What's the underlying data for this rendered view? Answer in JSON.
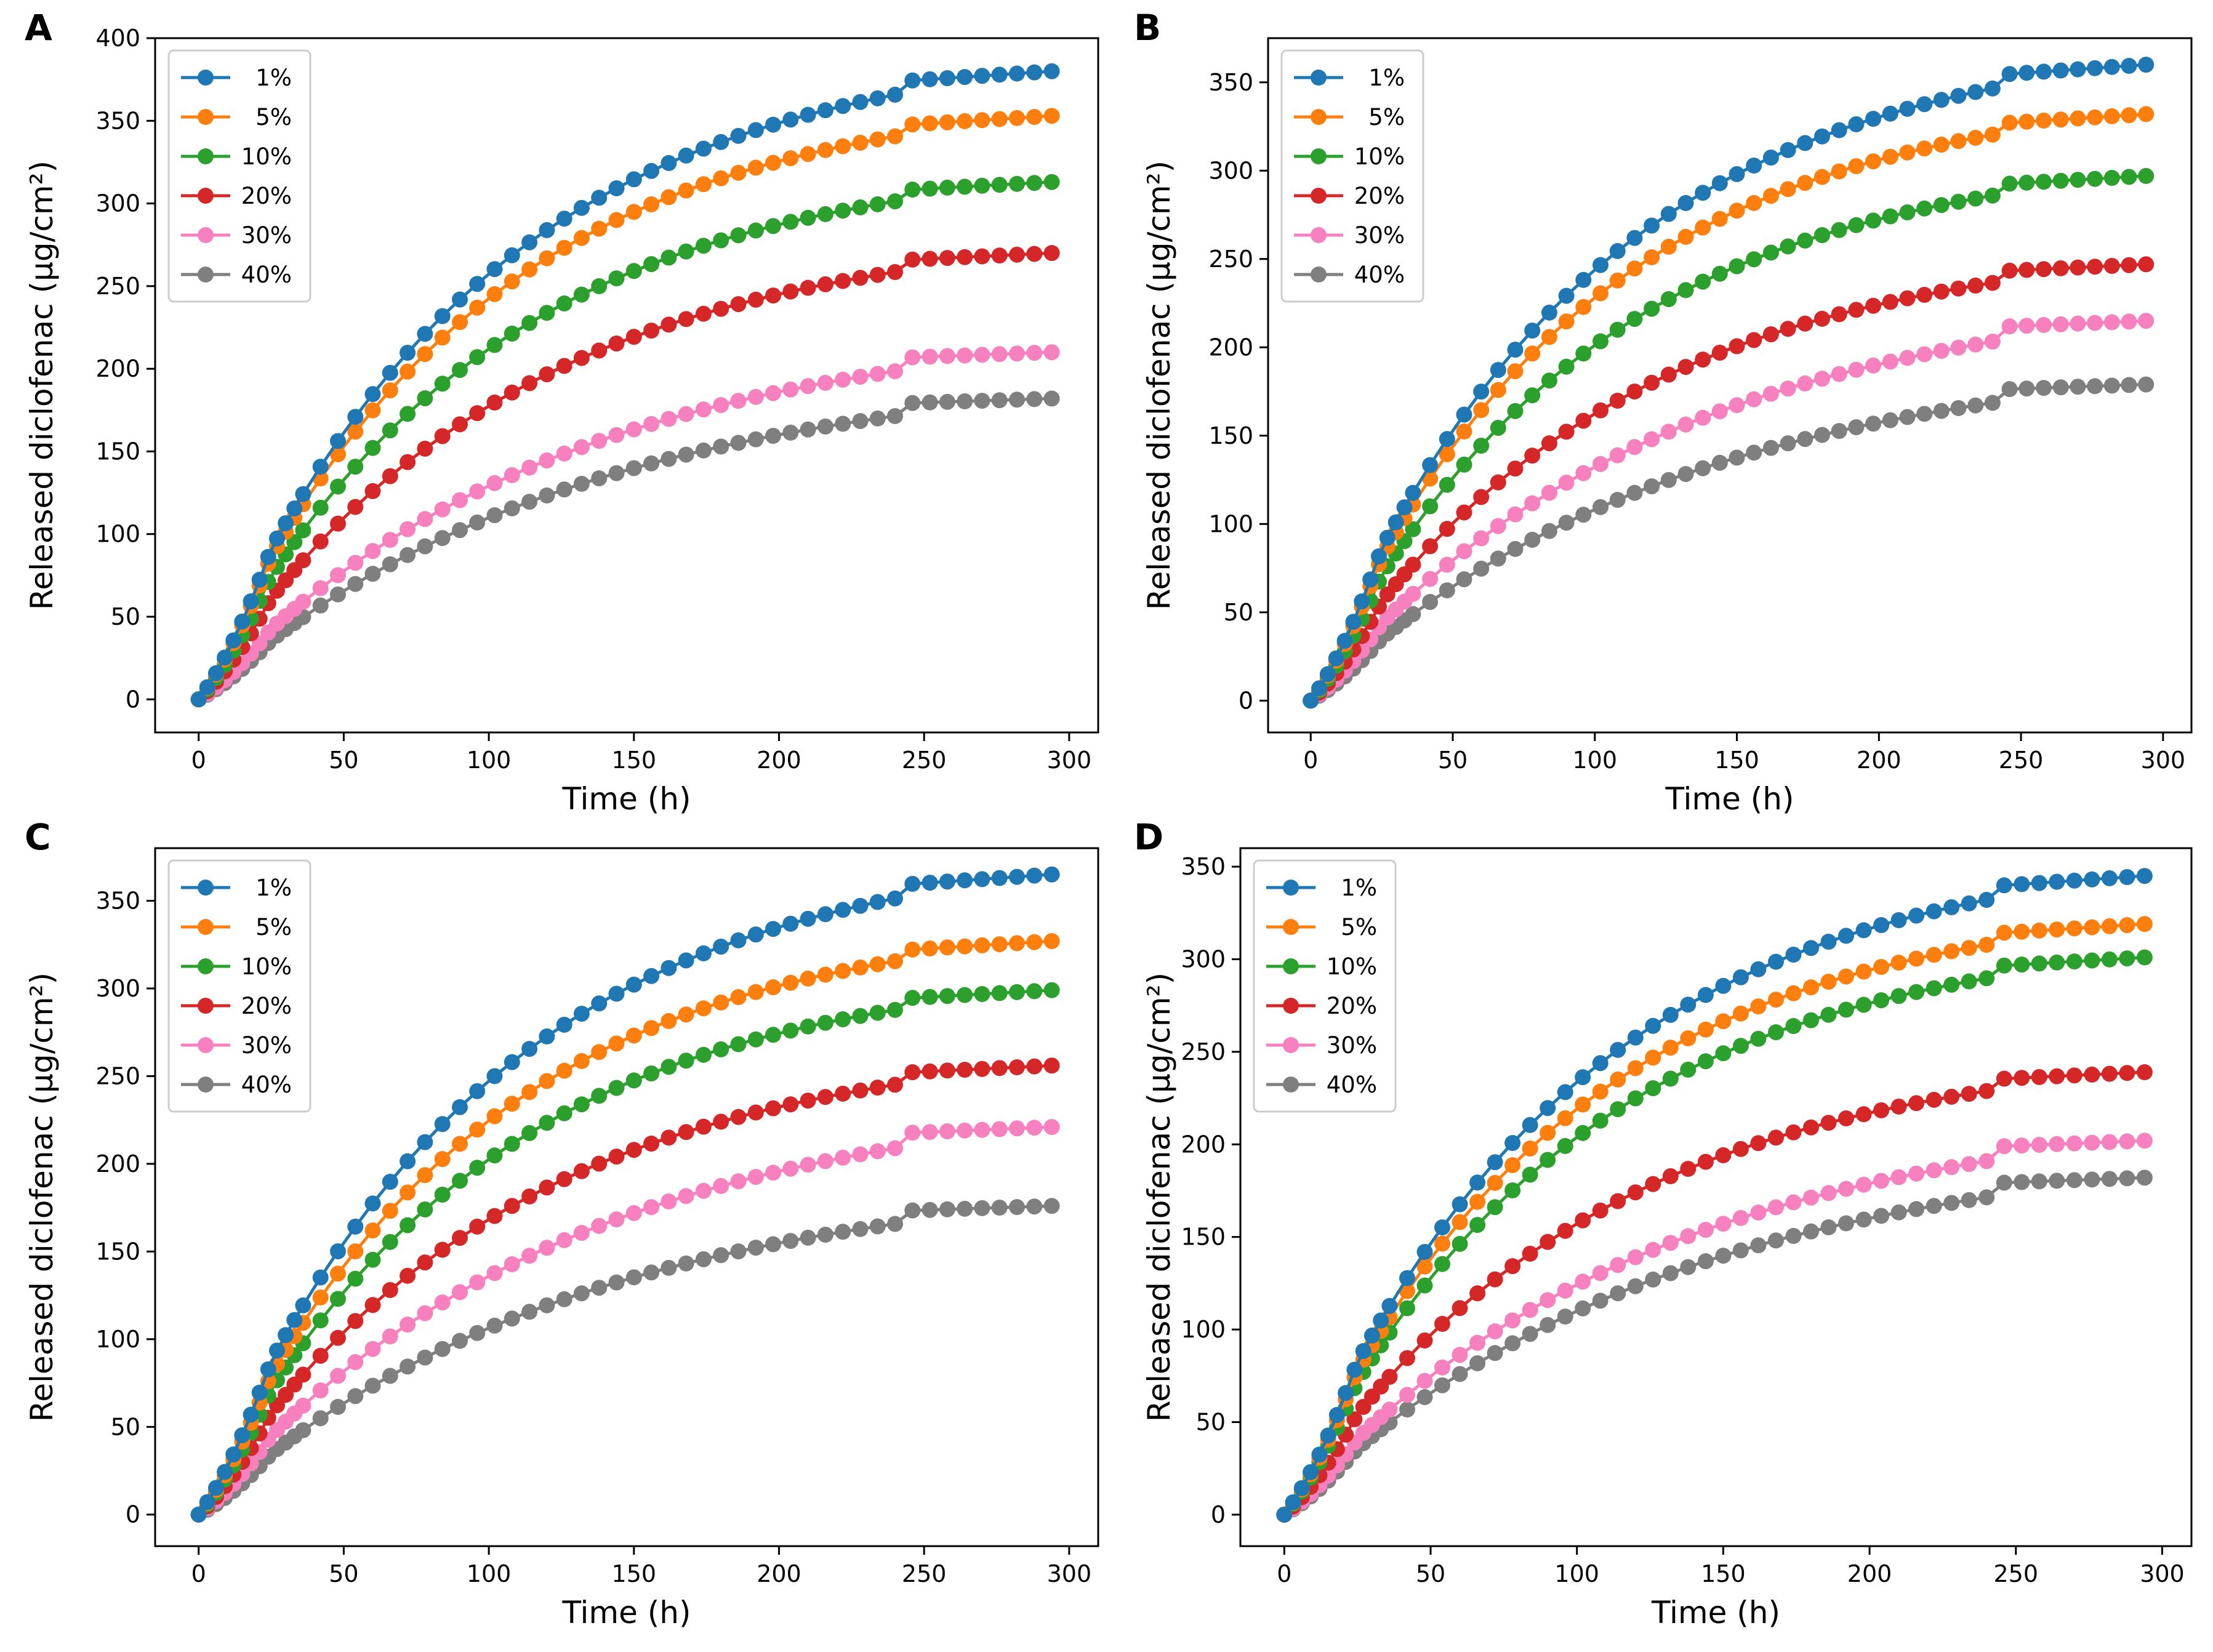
{
  "figure": {
    "title": ""
  },
  "chart_data": [
    {
      "panel_label": "A",
      "type": "line",
      "xlabel": "Time (h)",
      "ylabel": "Released diclofenac (μg/cm²)",
      "xlim": [
        -15,
        310
      ],
      "ylim": [
        -20,
        400
      ],
      "xticks": [
        0,
        50,
        100,
        150,
        200,
        250,
        300
      ],
      "yticks": [
        0,
        50,
        100,
        150,
        200,
        250,
        300,
        350,
        400
      ],
      "legend_location": "upper-left",
      "series": [
        {
          "name": "1%",
          "color": "#1f77b4",
          "values": [
            0,
            380
          ]
        },
        {
          "name": "5%",
          "color": "#ff7f0e",
          "values": [
            0,
            353
          ]
        },
        {
          "name": "10%",
          "color": "#2ca02c",
          "values": [
            0,
            313
          ]
        },
        {
          "name": "20%",
          "color": "#d62728",
          "values": [
            0,
            270
          ]
        },
        {
          "name": "30%",
          "color": "#f781bf",
          "values": [
            0,
            210
          ]
        },
        {
          "name": "40%",
          "color": "#7f7f7f",
          "values": [
            0,
            182
          ]
        }
      ]
    },
    {
      "panel_label": "B",
      "type": "line",
      "xlabel": "Time (h)",
      "ylabel": "Released diclofenac (μg/cm²)",
      "xlim": [
        -15,
        310
      ],
      "ylim": [
        -18,
        375
      ],
      "xticks": [
        0,
        50,
        100,
        150,
        200,
        250,
        300
      ],
      "yticks": [
        0,
        50,
        100,
        150,
        200,
        250,
        300,
        350
      ],
      "legend_location": "upper-left",
      "series": [
        {
          "name": "1%",
          "color": "#1f77b4",
          "values": [
            0,
            360
          ]
        },
        {
          "name": "5%",
          "color": "#ff7f0e",
          "values": [
            0,
            332
          ]
        },
        {
          "name": "10%",
          "color": "#2ca02c",
          "values": [
            0,
            297
          ]
        },
        {
          "name": "20%",
          "color": "#d62728",
          "values": [
            0,
            247
          ]
        },
        {
          "name": "30%",
          "color": "#f781bf",
          "values": [
            0,
            215
          ]
        },
        {
          "name": "40%",
          "color": "#7f7f7f",
          "values": [
            0,
            179
          ]
        }
      ]
    },
    {
      "panel_label": "C",
      "type": "line",
      "xlabel": "Time (h)",
      "ylabel": "Released diclofenac (μg/cm²)",
      "xlim": [
        -15,
        310
      ],
      "ylim": [
        -18,
        380
      ],
      "xticks": [
        0,
        50,
        100,
        150,
        200,
        250,
        300
      ],
      "yticks": [
        0,
        50,
        100,
        150,
        200,
        250,
        300,
        350
      ],
      "legend_location": "upper-left",
      "series": [
        {
          "name": "1%",
          "color": "#1f77b4",
          "values": [
            0,
            365
          ]
        },
        {
          "name": "5%",
          "color": "#ff7f0e",
          "values": [
            0,
            327
          ]
        },
        {
          "name": "10%",
          "color": "#2ca02c",
          "values": [
            0,
            299
          ]
        },
        {
          "name": "20%",
          "color": "#d62728",
          "values": [
            0,
            256
          ]
        },
        {
          "name": "30%",
          "color": "#f781bf",
          "values": [
            0,
            221
          ]
        },
        {
          "name": "40%",
          "color": "#7f7f7f",
          "values": [
            0,
            176
          ]
        }
      ]
    },
    {
      "panel_label": "D",
      "type": "line",
      "xlabel": "Time (h)",
      "ylabel": "Released diclofenac (μg/cm²)",
      "xlim": [
        -15,
        310
      ],
      "ylim": [
        -17,
        360
      ],
      "xticks": [
        0,
        50,
        100,
        150,
        200,
        250,
        300
      ],
      "yticks": [
        0,
        50,
        100,
        150,
        200,
        250,
        300,
        350
      ],
      "legend_location": "upper-left",
      "series": [
        {
          "name": "1%",
          "color": "#1f77b4",
          "values": [
            0,
            345
          ]
        },
        {
          "name": "5%",
          "color": "#ff7f0e",
          "values": [
            0,
            319
          ]
        },
        {
          "name": "10%",
          "color": "#2ca02c",
          "values": [
            0,
            301
          ]
        },
        {
          "name": "20%",
          "color": "#d62728",
          "values": [
            0,
            239
          ]
        },
        {
          "name": "30%",
          "color": "#f781bf",
          "values": [
            0,
            202
          ]
        },
        {
          "name": "40%",
          "color": "#7f7f7f",
          "values": [
            0,
            182
          ]
        }
      ]
    }
  ],
  "sampling": {
    "time_start": 0,
    "time_end": 294,
    "dense_step_h": 3,
    "dense_until_h": 36,
    "step_h": 6
  }
}
